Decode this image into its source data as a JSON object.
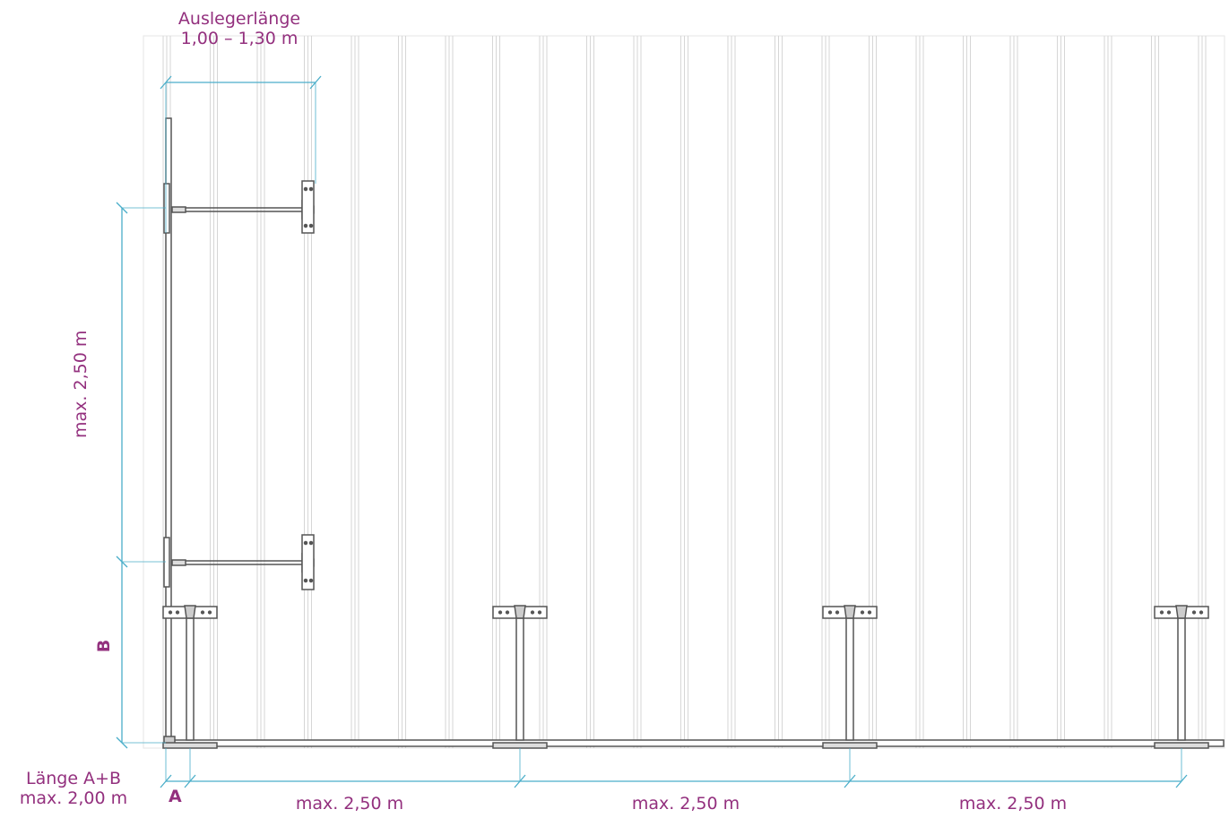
{
  "colors": {
    "label": "#93307e",
    "dimension": "#4aaec9",
    "structure": "#555555",
    "roof_lines": "#cfcfcf"
  },
  "labels": {
    "cantilever_title": "Auslegerlänge",
    "cantilever_range": "1,00 – 1,30 m",
    "vertical_spacing": "max. 2,50 m",
    "marker_b": "B",
    "marker_a": "A",
    "length_ab_title": "Länge A+B",
    "length_ab_max": "max. 2,00 m",
    "horizontal_spacing": [
      "max. 2,50 m",
      "max. 2,50 m",
      "max. 2,50 m"
    ]
  }
}
